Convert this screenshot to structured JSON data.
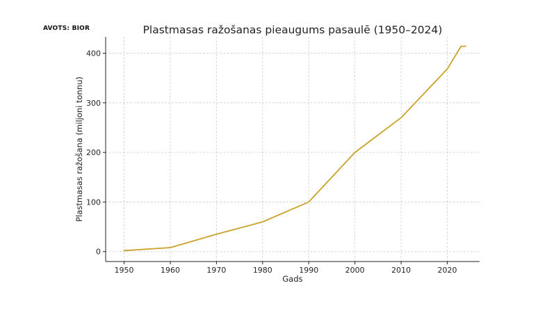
{
  "source_note": "AVOTS: BIOR",
  "chart_data": {
    "type": "line",
    "title": "Plastmasas ražošanas pieaugums pasaulē (1950–2024)",
    "xlabel": "Gads",
    "ylabel": "Plastmasas ražošana (miljoni tonnu)",
    "x_ticks": [
      1950,
      1960,
      1970,
      1980,
      1990,
      2000,
      2010,
      2020
    ],
    "y_ticks": [
      0,
      100,
      200,
      300,
      400
    ],
    "xlim": [
      1946,
      2027
    ],
    "ylim": [
      -20,
      433
    ],
    "grid": true,
    "series": [
      {
        "color": "#C9A227",
        "x": [
          1950,
          1960,
          1970,
          1980,
          1990,
          2000,
          2010,
          2020,
          2023,
          2024
        ],
        "y": [
          2,
          8,
          35,
          60,
          100,
          200,
          270,
          368,
          414,
          414
        ]
      }
    ]
  }
}
